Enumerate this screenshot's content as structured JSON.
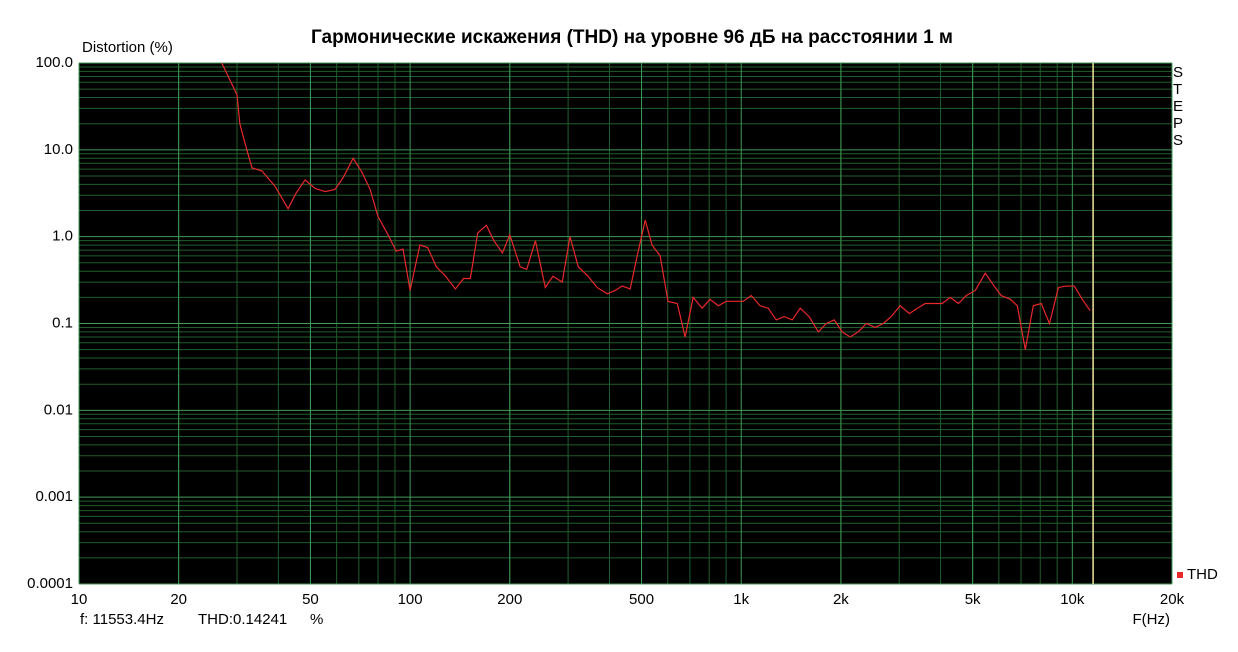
{
  "chart_data": {
    "type": "line",
    "title": "Гармонические искажения (THD) на уровне 96 дБ на расстоянии 1 м",
    "y_label": "Distortion (%)",
    "x_label": "F(Hz)",
    "side_label": "STEPS",
    "log_x": true,
    "log_y": true,
    "grid": true,
    "legend": "bottom-right",
    "xlim": [
      10,
      20000
    ],
    "ylim": [
      0.0001,
      100
    ],
    "xticks": [
      10,
      20,
      50,
      100,
      200,
      500,
      {
        "value": 1000,
        "label": "1k"
      },
      {
        "value": 2000,
        "label": "2k"
      },
      {
        "value": 5000,
        "label": "5k"
      },
      {
        "value": 10000,
        "label": "10k"
      },
      {
        "value": 20000,
        "label": "20k"
      }
    ],
    "yticks": [
      0.0001,
      0.001,
      0.01,
      0.1,
      {
        "value": 1,
        "label": "1.0"
      },
      {
        "value": 10,
        "label": "10.0"
      },
      {
        "value": 100,
        "label": "100.0"
      }
    ],
    "cursor": {
      "x": 11553.4,
      "label": "f: 11553.4Hz"
    },
    "cursor_readout": "THD:0.14241",
    "cursor_unit": "%",
    "x": [
      27,
      30,
      30.6,
      31.7,
      33.3,
      35.7,
      39.1,
      42.8,
      45.3,
      48.2,
      51.6,
      55.4,
      59.3,
      62.8,
      67.3,
      71.6,
      75.7,
      80,
      85.2,
      90.8,
      95.2,
      100,
      107,
      113,
      120,
      128,
      137,
      145,
      152,
      160,
      170,
      179,
      190,
      200,
      215,
      225,
      239,
      256,
      270,
      288,
      304,
      322,
      345,
      367,
      394,
      416,
      437,
      462,
      485,
      513,
      538,
      569,
      601,
      641,
      677,
      716,
      762,
      805,
      853,
      902,
      959,
      1014,
      1072,
      1140,
      1207,
      1276,
      1349,
      1426,
      1507,
      1603,
      1710,
      1807,
      1910,
      2019,
      2134,
      2256,
      2388,
      2541,
      2685,
      2838,
      3020,
      3221,
      3404,
      3597,
      3828,
      4046,
      4276,
      4529,
      4786,
      5093,
      5458,
      5768,
      6095,
      6501,
      6823,
      7211,
      7621,
      8054,
      8531,
      9078,
      9594,
      10139,
      10715,
      11324
    ],
    "series": [
      {
        "name": "THD",
        "color": "#e8282a",
        "values": [
          100,
          43,
          20,
          12,
          6.2,
          5.7,
          3.8,
          2.1,
          3.2,
          4.5,
          3.6,
          3.3,
          3.5,
          4.8,
          8,
          5.5,
          3.5,
          1.7,
          1.1,
          0.68,
          0.72,
          0.24,
          0.8,
          0.75,
          0.45,
          0.35,
          0.25,
          0.33,
          0.33,
          1.1,
          1.35,
          0.9,
          0.65,
          1.05,
          0.45,
          0.42,
          0.9,
          0.26,
          0.35,
          0.3,
          1.0,
          0.45,
          0.35,
          0.26,
          0.22,
          0.24,
          0.27,
          0.25,
          0.6,
          1.55,
          0.8,
          0.6,
          0.18,
          0.17,
          0.07,
          0.2,
          0.15,
          0.19,
          0.16,
          0.18,
          0.18,
          0.18,
          0.21,
          0.16,
          0.15,
          0.11,
          0.12,
          0.11,
          0.15,
          0.12,
          0.08,
          0.1,
          0.11,
          0.08,
          0.07,
          0.08,
          0.1,
          0.09,
          0.1,
          0.12,
          0.16,
          0.13,
          0.15,
          0.17,
          0.17,
          0.17,
          0.2,
          0.17,
          0.21,
          0.24,
          0.38,
          0.28,
          0.21,
          0.19,
          0.16,
          0.05,
          0.16,
          0.17,
          0.1,
          0.26,
          0.27,
          0.27,
          0.19,
          0.14
        ]
      }
    ]
  }
}
